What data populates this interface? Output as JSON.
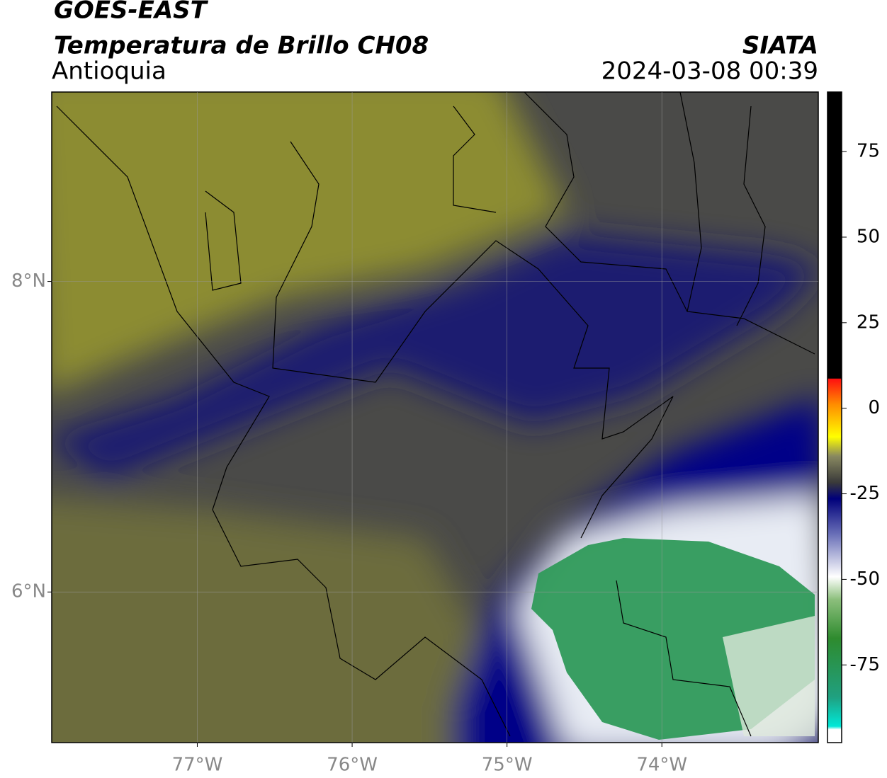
{
  "header": {
    "title": "GOES-EAST",
    "subtitle": "Temperatura de Brillo CH08",
    "region": "Antioquia",
    "source": "SIATA",
    "timestamp": "2024-03-08 00:39"
  },
  "map": {
    "xlim": [
      -77.94,
      -72.99
    ],
    "ylim": [
      5.03,
      9.22
    ],
    "xticks": [
      {
        "value": -77,
        "label": "77°W"
      },
      {
        "value": -76,
        "label": "76°W"
      },
      {
        "value": -75,
        "label": "75°W"
      },
      {
        "value": -74,
        "label": "74°W"
      }
    ],
    "yticks": [
      {
        "value": 8,
        "label": "8°N"
      },
      {
        "value": 6,
        "label": "6°N"
      }
    ],
    "grid": true
  },
  "colorbar": {
    "lim": [
      -97.7,
      92.4
    ],
    "ticks": [
      75,
      50,
      25,
      0,
      -25,
      -50,
      -75
    ]
  }
}
